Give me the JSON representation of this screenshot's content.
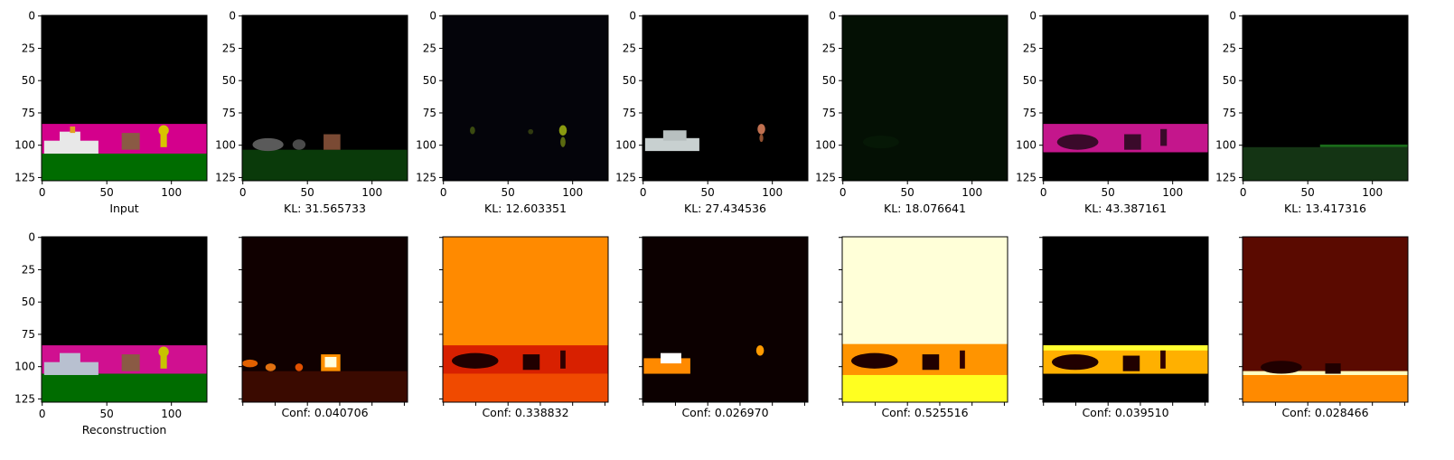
{
  "figure": {
    "tick_labels": [
      "0",
      "25",
      "50",
      "75",
      "100",
      "125"
    ],
    "x_tick_labels": [
      "0",
      "50",
      "100"
    ],
    "top_row": [
      {
        "label": "Input"
      },
      {
        "label": "KL: 31.565733"
      },
      {
        "label": "KL: 12.603351"
      },
      {
        "label": "KL: 27.434536"
      },
      {
        "label": "KL: 18.076641"
      },
      {
        "label": "KL: 43.387161"
      },
      {
        "label": "KL: 13.417316"
      }
    ],
    "bottom_row": [
      {
        "label": "Reconstruction"
      },
      {
        "label": "Conf: 0.040706"
      },
      {
        "label": "Conf: 0.338832"
      },
      {
        "label": "Conf: 0.026970"
      },
      {
        "label": "Conf: 0.525516"
      },
      {
        "label": "Conf: 0.039510"
      },
      {
        "label": "Conf: 0.028466"
      }
    ]
  }
}
